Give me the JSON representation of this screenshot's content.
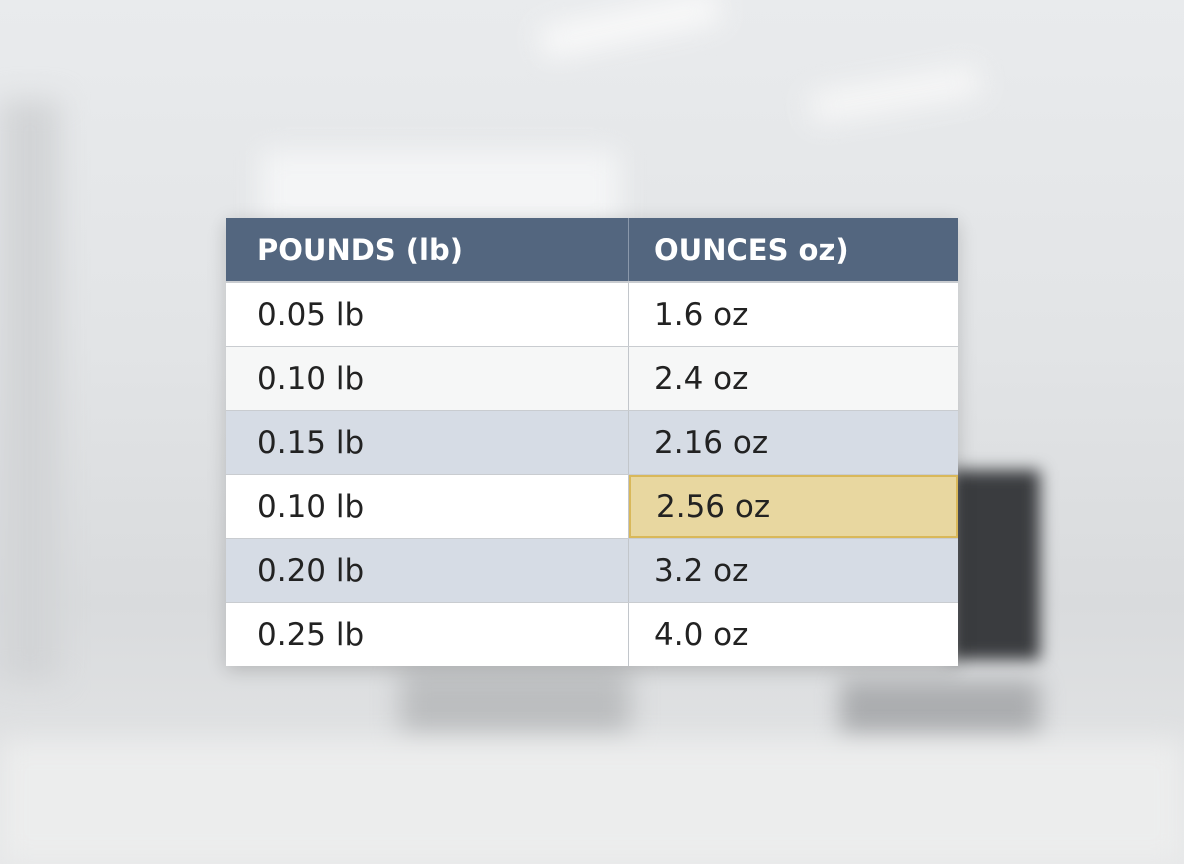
{
  "table": {
    "headers": [
      "POUNDS (lb)",
      "OUNCES oz)"
    ],
    "rows": [
      {
        "pounds": "0.05 lb",
        "ounces": "1.6 oz",
        "shade": "white"
      },
      {
        "pounds": "0.10 lb",
        "ounces": "2.4 oz",
        "shade": "light"
      },
      {
        "pounds": "0.15 lb",
        "ounces": "2.16 oz",
        "shade": "blue"
      },
      {
        "pounds": "0.10 lb",
        "ounces": "2.56 oz",
        "shade": "white",
        "highlighted": "ounces"
      },
      {
        "pounds": "0.20 lb",
        "ounces": "3.2 oz",
        "shade": "blue"
      },
      {
        "pounds": "0.25 lb",
        "ounces": "4.0 oz",
        "shade": "white"
      }
    ]
  },
  "colors": {
    "header": "#53667f",
    "row_blue": "#d6dce5",
    "highlight": "#e8d7a0",
    "highlight_border": "#d9b85a"
  }
}
